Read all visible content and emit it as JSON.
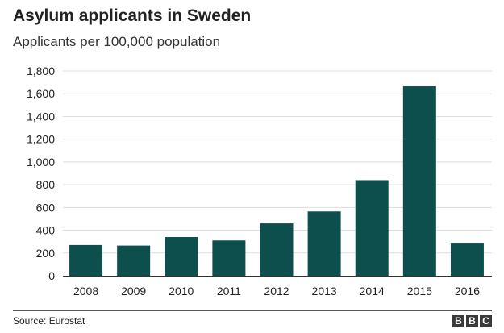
{
  "header": {
    "title": "Asylum applicants in Sweden",
    "subtitle": "Applicants per 100,000 population"
  },
  "footer": {
    "source": "Source: Eurostat",
    "logo_letters": [
      "B",
      "B",
      "C"
    ]
  },
  "colors": {
    "bar": "#0d4f4c",
    "grid": "#dddddd",
    "axis": "#333333",
    "text": "#222222"
  },
  "chart_data": {
    "type": "bar",
    "title": "Asylum applicants in Sweden",
    "subtitle": "Applicants per 100,000 population",
    "categories": [
      "2008",
      "2009",
      "2010",
      "2011",
      "2012",
      "2013",
      "2014",
      "2015",
      "2016"
    ],
    "values": [
      270,
      265,
      340,
      310,
      460,
      565,
      840,
      1665,
      290
    ],
    "ylim": [
      0,
      1800
    ],
    "yticks": [
      0,
      200,
      400,
      600,
      800,
      1000,
      1200,
      1400,
      1600,
      1800
    ],
    "ytick_labels": [
      "0",
      "200",
      "400",
      "600",
      "800",
      "1,000",
      "1,200",
      "1,400",
      "1,600",
      "1,800"
    ],
    "grid": true,
    "legend": "none",
    "xlabel": "",
    "ylabel": ""
  }
}
